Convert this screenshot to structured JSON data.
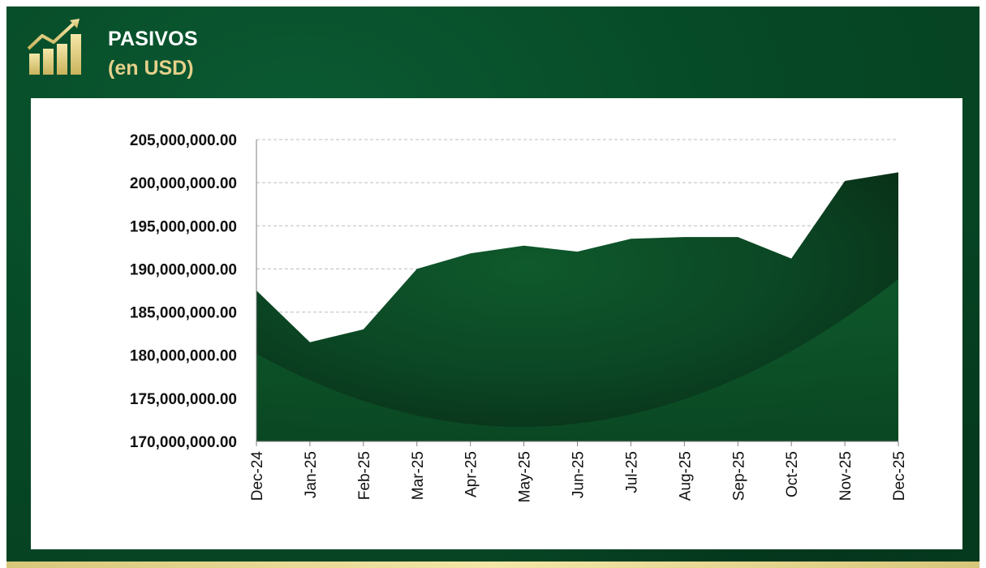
{
  "header": {
    "title": "PASIVOS",
    "subtitle": "(en USD)",
    "icon": "bar-chart-growth-icon"
  },
  "colors": {
    "background": "#064a27",
    "accent_gold": "#e4d08a",
    "area_dark": "#0a3a1e",
    "area_mid": "#0f5a2c"
  },
  "chart_data": {
    "type": "area",
    "title": "",
    "xlabel": "",
    "ylabel": "",
    "categories": [
      "Dec-24",
      "Jan-25",
      "Feb-25",
      "Mar-25",
      "Apr-25",
      "May-25",
      "Jun-25",
      "Jul-25",
      "Aug-25",
      "Sep-25",
      "Oct-25",
      "Nov-25",
      "Dec-25"
    ],
    "series": [
      {
        "values": [
          187500000,
          181500000,
          183000000,
          190000000,
          191800000,
          192700000,
          192000000,
          193500000,
          193700000,
          193700000,
          191200000,
          200200000,
          201200000
        ]
      }
    ],
    "ylim": [
      170000000,
      205000000
    ],
    "yticks": [
      170000000,
      175000000,
      180000000,
      185000000,
      190000000,
      195000000,
      200000000,
      205000000
    ],
    "ytick_labels": [
      "170,000,000.00",
      "175,000,000.00",
      "180,000,000.00",
      "185,000,000.00",
      "190,000,000.00",
      "195,000,000.00",
      "200,000,000.00",
      "205,000,000.00"
    ],
    "grid": true,
    "legend": "none"
  }
}
